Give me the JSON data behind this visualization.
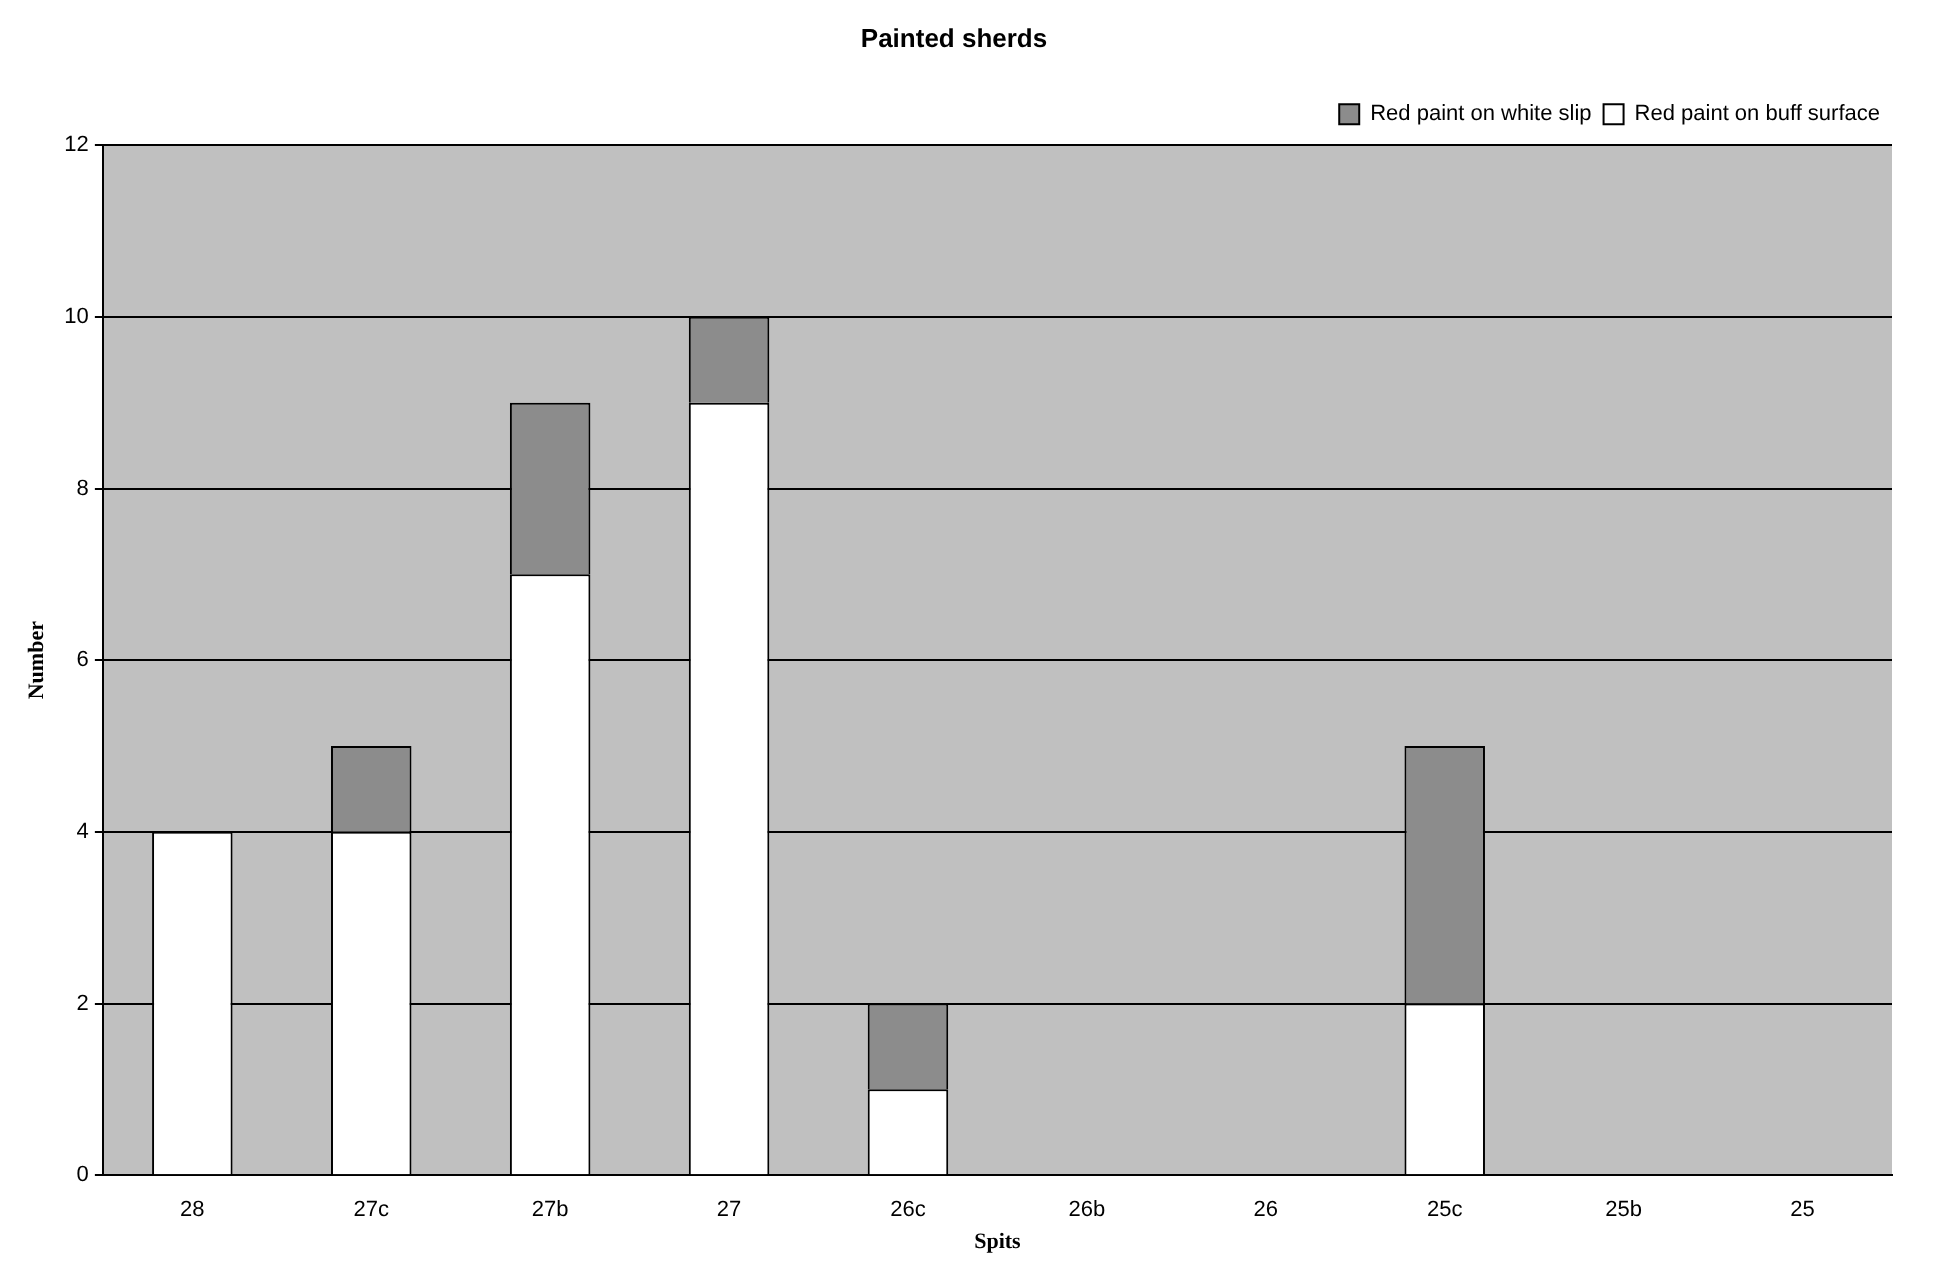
{
  "chart_data": {
    "type": "bar",
    "title": "Painted sherds",
    "xlabel": "Spits",
    "ylabel": "Number",
    "categories": [
      "28",
      "27c",
      "27b",
      "27",
      "26c",
      "26b",
      "26",
      "25c",
      "25b",
      "25"
    ],
    "stacked": true,
    "series": [
      {
        "name": "Red paint on buff surface",
        "color": "#ffffff",
        "values": [
          4,
          4,
          7,
          9,
          1,
          0,
          0,
          2,
          0,
          0
        ]
      },
      {
        "name": "Red paint on white slip",
        "color": "#8c8c8c",
        "values": [
          0,
          1,
          2,
          1,
          1,
          0,
          0,
          3,
          0,
          0
        ]
      }
    ],
    "ylim": [
      0,
      12
    ],
    "yticks": [
      0,
      2,
      4,
      6,
      8,
      10,
      12
    ],
    "grid": "y",
    "legend": "top right"
  }
}
